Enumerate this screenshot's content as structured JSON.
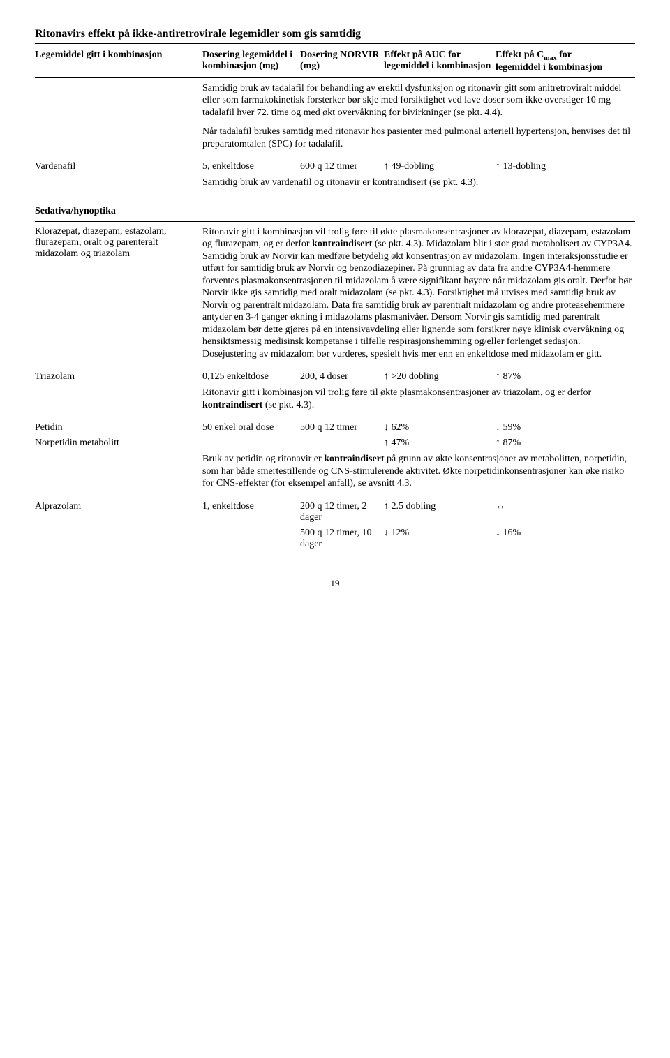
{
  "title": "Ritonavirs effekt på ikke-antiretrovirale legemidler som gis samtidig",
  "headers": {
    "drug": "Legemiddel gitt i kombinasjon",
    "dose1": "Dosering legemiddel i kombinasjon (mg)",
    "dose2": "Dosering NORVIR (mg)",
    "auc": "Effekt på AUC for legemiddel i kombinasjon",
    "cmax_pre": "Effekt på C",
    "cmax_sub": "max",
    "cmax_post": " for legemiddel i kombinasjon"
  },
  "tadalafil_para1": "Samtidig bruk av tadalafil for behandling av erektil dysfunksjon og ritonavir gitt som anitretroviralt middel eller som farmakokinetisk forsterker bør skje med forsiktighet ved lave doser som ikke overstiger 10 mg tadalafil hver 72. time og med økt overvåkning for bivirkninger (se pkt. 4.4).",
  "tadalafil_para2": "Når tadalafil brukes samtidg med ritonavir hos pasienter med pulmonal arteriell hypertensjon, henvises det til preparatomtalen (SPC) for tadalafil.",
  "vardenafil": {
    "name": "Vardenafil",
    "dose1": "5, enkeltdose",
    "dose2": "600 q 12 timer",
    "auc": "↑ 49-dobling",
    "cmax": "↑ 13-dobling",
    "note": "Samtidig bruk av vardenafil og ritonavir er kontraindisert (se pkt. 4.3)."
  },
  "section_sedativa": "Sedativa/hynoptika",
  "klorazepat": {
    "name": "Klorazepat, diazepam, estazolam, flurazepam, oralt og parenteralt midazolam og triazolam",
    "para": "Ritonavir gitt i kombinasjon vil trolig føre til økte plasmakonsentrasjoner av klorazepat, diazepam, estazolam og flurazepam, og er derfor <b>kontraindisert</b> (se pkt. 4.3). Midazolam blir i stor grad metabolisert av CYP3A4. Samtidig bruk av Norvir kan medføre betydelig økt konsentrasjon av midazolam. Ingen interaksjonsstudie er utført for samtidig bruk av Norvir og benzodiazepiner. På grunnlag av data fra andre CYP3A4-hemmere forventes plasmakonsentrasjonen til midazolam å være signifikant høyere når midazolam gis oralt. Derfor bør Norvir ikke gis samtidig med oralt midazolam (se pkt. 4.3). Forsiktighet må utvises med samtidig bruk av Norvir og parentralt midazolam. Data fra samtidig bruk av parentralt midazolam og andre proteasehemmere antyder en 3-4 ganger økning i midazolams plasmanivåer. Dersom Norvir gis samtidig med parentralt midazolam bør dette gjøres på en intensivavdeling eller lignende som forsikrer nøye klinisk overvåkning og hensiktsmessig medisinsk kompetanse i tilfelle respirasjonshemming og/eller forlenget sedasjon. Dosejustering av midazalom bør vurderes, spesielt hvis mer enn en enkeltdose med midazolam er gitt."
  },
  "triazolam": {
    "name": "Triazolam",
    "dose1": "0,125 enkeltdose",
    "dose2": "200, 4 doser",
    "auc": "↑ >20 dobling",
    "cmax": "↑ 87%",
    "note": "Ritonavir gitt i kombinasjon vil trolig føre til økte plasmakonsentrasjoner av triazolam, og er derfor <b>kontraindisert</b> (se pkt. 4.3)."
  },
  "petidin": {
    "name": "Petidin",
    "dose1": "50 enkel oral dose",
    "dose2": "500 q 12 timer",
    "auc": "↓ 62%",
    "cmax": "↓ 59%"
  },
  "norpetidin": {
    "name": "Norpetidin metabolitt",
    "auc": "↑ 47%",
    "cmax": "↑ 87%",
    "note": "Bruk av petidin og ritonavir er <b>kontraindisert</b> på grunn av økte konsentrasjoner av metabolitten, norpetidin, som har både smertestillende og CNS-stimulerende aktivitet. Økte norpetidinkonsentrasjoner kan øke risiko for CNS-effekter (for eksempel anfall), se avsnitt 4.3."
  },
  "alprazolam": {
    "name": "Alprazolam",
    "dose1": "1, enkeltdose",
    "r1_dose2": "200 q 12 timer, 2 dager",
    "r1_auc": "↑ 2.5 dobling",
    "r1_cmax": "↔",
    "r2_dose2": "500 q 12 timer, 10 dager",
    "r2_auc": "↓ 12%",
    "r2_cmax": "↓ 16%"
  },
  "page_number": "19"
}
